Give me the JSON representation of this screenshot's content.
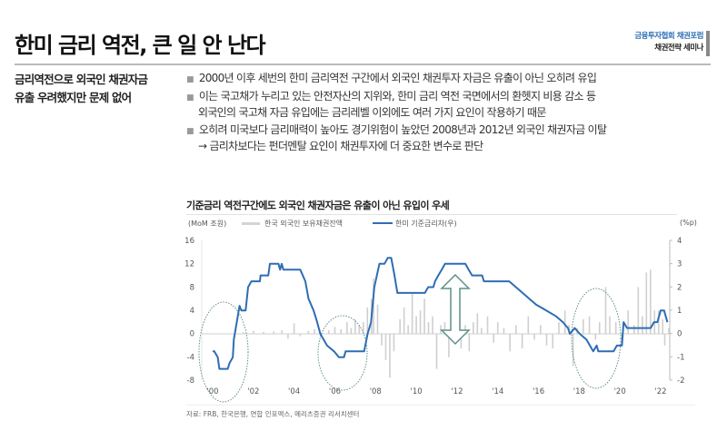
{
  "header": {
    "title": "한미 금리 역전, 큰 일 안 난다",
    "org_line1": "금융투자협회 채권포럼",
    "org_line2": "채권전략 세미나"
  },
  "summary": {
    "subtitle_line1": "금리역전으로 외국인 채권자금",
    "subtitle_line2": "유출 우려했지만 문제 없어"
  },
  "bullets": [
    {
      "lines": [
        "2000년 이후 세번의 한미 금리역전 구간에서 외국인 채권투자 자금은 유출이 아닌 오히려 유입"
      ]
    },
    {
      "lines": [
        "이는 국고채가 누리고 있는 안전자산의 지위와, 한미 금리 역전 국면에서의 환헷지 비용 감소 등",
        "외국인의 국고채 자금 유입에는 금리레벨 이외에도 여러 가지 요인이 작용하기 때문"
      ]
    },
    {
      "lines": [
        "오히려 미국보다 금리매력이 높아도 경기위험이 높았던 2008년과 2012년 외국인 채권자금 이탈",
        "→ 금리차보다는 펀더멘탈 요인이 채권투자에 더 중요한 변수로 판단"
      ]
    }
  ],
  "colors": {
    "line": "#2e6db4",
    "bars": "#cfcfcf",
    "annotation": "#5f8f8a",
    "accent": "#2f6fb5"
  },
  "chart_data": {
    "type": "bar+line",
    "title": "기준금리 역전구간에도 외국인 채권자금은 유출이 아닌 유입이 우세",
    "left_unit": "(MoM 조원)",
    "right_unit": "(%p)",
    "ylim_left": [
      -8,
      16
    ],
    "ylim_right": [
      -2,
      4
    ],
    "yticks_left": [
      "16",
      "12",
      "8",
      "4",
      "0",
      "-4",
      "-8"
    ],
    "yticks_right": [
      "4",
      "3",
      "2",
      "1",
      "0",
      "-1",
      "-2"
    ],
    "xticks": [
      "'00",
      "'02",
      "'04",
      "'06",
      "'08",
      "'10",
      "'12",
      "'14",
      "'16",
      "'18",
      "'20",
      "'22"
    ],
    "source": "자료: FRB, 한국은행, 연합 인포맥스, 메리츠증권 리서치센터",
    "series": [
      {
        "name": "한국 외국인 보유채권잔액",
        "type": "bar",
        "axis": "left",
        "points": [
          [
            2001.5,
            0.3
          ],
          [
            2002.0,
            0.5
          ],
          [
            2002.5,
            0.3
          ],
          [
            2003.0,
            0.4
          ],
          [
            2003.4,
            0.6
          ],
          [
            2003.7,
            -0.8
          ],
          [
            2004.0,
            1.8
          ],
          [
            2004.3,
            -0.4
          ],
          [
            2004.7,
            0.5
          ],
          [
            2005.0,
            0.8
          ],
          [
            2005.3,
            -0.5
          ],
          [
            2005.7,
            0.6
          ],
          [
            2006.0,
            1.2
          ],
          [
            2006.3,
            0.8
          ],
          [
            2006.6,
            2.0
          ],
          [
            2006.8,
            1.0
          ],
          [
            2007.0,
            2.5
          ],
          [
            2007.2,
            1.5
          ],
          [
            2007.4,
            2.0
          ],
          [
            2007.6,
            4.5
          ],
          [
            2007.8,
            6.0
          ],
          [
            2007.9,
            9.5
          ],
          [
            2008.1,
            5.0
          ],
          [
            2008.3,
            -2.0
          ],
          [
            2008.5,
            -4.5
          ],
          [
            2008.7,
            -7.5
          ],
          [
            2008.9,
            -3.0
          ],
          [
            2009.2,
            2.5
          ],
          [
            2009.4,
            4.5
          ],
          [
            2009.6,
            1.5
          ],
          [
            2009.8,
            7.0
          ],
          [
            2010.0,
            3.0
          ],
          [
            2010.2,
            4.0
          ],
          [
            2010.4,
            6.0
          ],
          [
            2010.6,
            2.0
          ],
          [
            2010.8,
            3.0
          ],
          [
            2011.0,
            -6.0
          ],
          [
            2011.2,
            1.5
          ],
          [
            2011.4,
            2.0
          ],
          [
            2011.6,
            -4.0
          ],
          [
            2011.8,
            2.5
          ],
          [
            2012.0,
            3.0
          ],
          [
            2012.2,
            -2.5
          ],
          [
            2012.4,
            1.5
          ],
          [
            2012.6,
            -3.0
          ],
          [
            2012.8,
            2.0
          ],
          [
            2013.0,
            3.5
          ],
          [
            2013.2,
            1.0
          ],
          [
            2013.5,
            3.0
          ],
          [
            2013.8,
            -1.5
          ],
          [
            2014.0,
            2.0
          ],
          [
            2014.3,
            1.0
          ],
          [
            2014.6,
            -3.0
          ],
          [
            2014.9,
            1.5
          ],
          [
            2015.2,
            -2.5
          ],
          [
            2015.5,
            3.0
          ],
          [
            2015.8,
            -1.0
          ],
          [
            2016.1,
            1.5
          ],
          [
            2016.4,
            -2.0
          ],
          [
            2016.7,
            -2.5
          ],
          [
            2017.0,
            2.0
          ],
          [
            2017.3,
            4.0
          ],
          [
            2017.5,
            1.5
          ],
          [
            2017.7,
            -5.5
          ],
          [
            2017.9,
            1.0
          ],
          [
            2018.2,
            2.5
          ],
          [
            2018.5,
            3.0
          ],
          [
            2018.8,
            -1.0
          ],
          [
            2019.0,
            2.0
          ],
          [
            2019.3,
            8.0
          ],
          [
            2019.5,
            3.0
          ],
          [
            2019.8,
            2.0
          ],
          [
            2020.1,
            -1.5
          ],
          [
            2020.4,
            4.0
          ],
          [
            2020.7,
            1.5
          ],
          [
            2020.9,
            8.0
          ],
          [
            2021.1,
            3.0
          ],
          [
            2021.3,
            10.5
          ],
          [
            2021.5,
            11.0
          ],
          [
            2021.7,
            4.0
          ],
          [
            2021.9,
            4.0
          ],
          [
            2022.1,
            2.5
          ],
          [
            2022.2,
            -2.0
          ],
          [
            2022.4,
            1.0
          ]
        ]
      },
      {
        "name": "한미 기준금리차(우)",
        "type": "line",
        "axis": "right",
        "points": [
          [
            2000.0,
            -0.75
          ],
          [
            2000.08,
            -0.75
          ],
          [
            2000.25,
            -1.0
          ],
          [
            2000.33,
            -1.5
          ],
          [
            2000.74,
            -1.5
          ],
          [
            2000.83,
            -1.25
          ],
          [
            2000.99,
            -1.0
          ],
          [
            2001.04,
            -0.25
          ],
          [
            2001.32,
            1.2
          ],
          [
            2001.41,
            1.0
          ],
          [
            2001.62,
            1.0
          ],
          [
            2001.74,
            2.0
          ],
          [
            2001.9,
            2.25
          ],
          [
            2002.32,
            2.25
          ],
          [
            2002.35,
            2.5
          ],
          [
            2002.73,
            2.5
          ],
          [
            2002.81,
            3.0
          ],
          [
            2003.23,
            3.0
          ],
          [
            2003.31,
            2.75
          ],
          [
            2003.39,
            3.0
          ],
          [
            2003.47,
            2.75
          ],
          [
            2004.3,
            2.75
          ],
          [
            2004.55,
            2.25
          ],
          [
            2004.71,
            1.5
          ],
          [
            2004.96,
            1.0
          ],
          [
            2005.13,
            0.5
          ],
          [
            2005.29,
            0.0
          ],
          [
            2005.62,
            -0.5
          ],
          [
            2005.96,
            -0.75
          ],
          [
            2006.2,
            -1.0
          ],
          [
            2006.45,
            -1.0
          ],
          [
            2006.53,
            -0.75
          ],
          [
            2007.44,
            -0.75
          ],
          [
            2007.61,
            0.0
          ],
          [
            2007.78,
            0.5
          ],
          [
            2007.94,
            2.0
          ],
          [
            2008.19,
            3.0
          ],
          [
            2008.44,
            3.0
          ],
          [
            2008.6,
            3.25
          ],
          [
            2008.77,
            3.25
          ],
          [
            2008.93,
            2.5
          ],
          [
            2009.07,
            1.75
          ],
          [
            2010.42,
            1.75
          ],
          [
            2010.59,
            2.0
          ],
          [
            2010.84,
            2.0
          ],
          [
            2010.92,
            2.25
          ],
          [
            2011.08,
            2.5
          ],
          [
            2011.25,
            2.75
          ],
          [
            2011.41,
            3.0
          ],
          [
            2012.41,
            3.0
          ],
          [
            2012.57,
            2.75
          ],
          [
            2012.74,
            2.5
          ],
          [
            2013.23,
            2.5
          ],
          [
            2013.32,
            2.25
          ],
          [
            2014.56,
            2.25
          ],
          [
            2014.89,
            2.0
          ],
          [
            2015.22,
            1.75
          ],
          [
            2015.55,
            1.5
          ],
          [
            2015.88,
            1.25
          ],
          [
            2016.38,
            1.0
          ],
          [
            2016.87,
            0.75
          ],
          [
            2017.2,
            0.5
          ],
          [
            2017.45,
            0.25
          ],
          [
            2017.54,
            0.0
          ],
          [
            2017.78,
            0.25
          ],
          [
            2018.03,
            0.0
          ],
          [
            2018.36,
            -0.25
          ],
          [
            2018.69,
            -0.75
          ],
          [
            2018.86,
            -0.5
          ],
          [
            2018.94,
            -0.75
          ],
          [
            2019.69,
            -0.75
          ],
          [
            2019.85,
            -0.5
          ],
          [
            2020.1,
            -0.5
          ],
          [
            2020.18,
            0.5
          ],
          [
            2020.35,
            0.25
          ],
          [
            2021.51,
            0.25
          ],
          [
            2021.67,
            0.5
          ],
          [
            2021.84,
            0.5
          ],
          [
            2022.0,
            1.0
          ],
          [
            2022.17,
            1.0
          ],
          [
            2022.33,
            0.5
          ]
        ]
      }
    ]
  }
}
